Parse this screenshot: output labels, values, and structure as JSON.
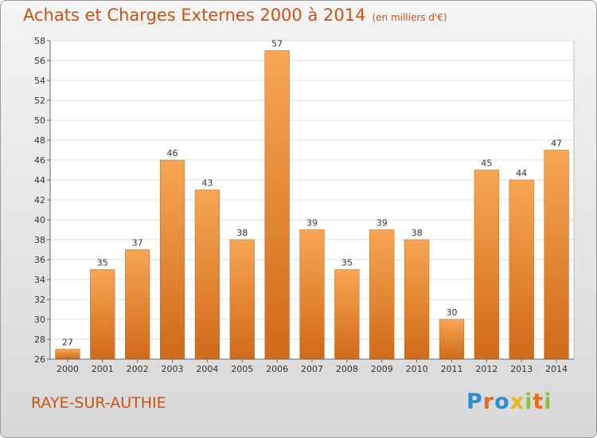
{
  "title": "Achats et Charges Externes 2000 à 2014",
  "unit": "(en milliers d'€)",
  "place": "RAYE-SUR-AUTHIE",
  "logo": {
    "letters": [
      "P",
      "r",
      "o",
      "x",
      "i",
      "t",
      "i"
    ],
    "colors": [
      "#2a8fd0",
      "#e86a1a",
      "#2a8fd0",
      "#e8b81a",
      "#8cbf3a",
      "#e86a1a",
      "#8cbf3a"
    ]
  },
  "colors": {
    "bar_top": "#f7a654",
    "bar_bottom": "#cf6a1a",
    "title": "#d05010"
  },
  "chart_data": {
    "type": "bar",
    "categories": [
      "2000",
      "2001",
      "2002",
      "2003",
      "2004",
      "2005",
      "2006",
      "2007",
      "2008",
      "2009",
      "2010",
      "2011",
      "2012",
      "2013",
      "2014"
    ],
    "values": [
      27,
      35,
      37,
      46,
      43,
      38,
      57,
      39,
      35,
      39,
      38,
      30,
      45,
      44,
      47
    ],
    "ylim": [
      26,
      58
    ],
    "yticks": [
      26,
      28,
      30,
      32,
      34,
      36,
      38,
      40,
      42,
      44,
      46,
      48,
      50,
      52,
      54,
      56,
      58
    ],
    "grid": true
  }
}
